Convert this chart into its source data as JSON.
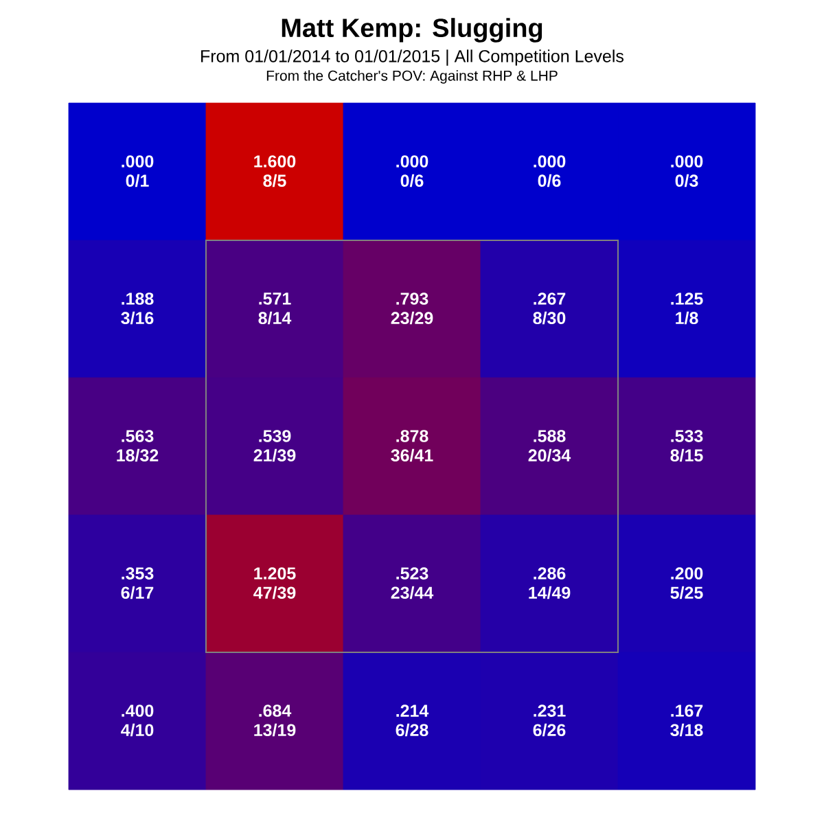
{
  "chart_data": {
    "type": "heatmap",
    "title": "Matt Kemp: Slugging",
    "subtitle": "From 01/01/2014 to 01/01/2015 | All Competition Levels",
    "annotations": [
      "From the Catcher's POV:   Against RHP & LHP",
      {
        "text": "0/1"
      },
      {
        "text": "8/5"
      },
      {
        "text": "0/6"
      },
      {
        "text": "0/6"
      },
      {
        "text": "0/3"
      },
      {
        "text": "3/16"
      },
      {
        "text": "8/14"
      },
      {
        "text": "23/29"
      },
      {
        "text": "8/30"
      },
      {
        "text": "1/8"
      },
      {
        "text": "18/32"
      },
      {
        "text": "21/39"
      },
      {
        "text": "36/41"
      },
      {
        "text": "20/34"
      },
      {
        "text": "8/15"
      },
      {
        "text": "6/17"
      },
      {
        "text": "47/39"
      },
      {
        "text": "23/44"
      },
      {
        "text": "14/49"
      },
      {
        "text": "5/25"
      },
      {
        "text": "4/10"
      },
      {
        "text": "13/19"
      },
      {
        "text": "6/28"
      },
      {
        "text": "6/26"
      },
      {
        "text": "3/18"
      }
    ],
    "categories": [
      null,
      null,
      null,
      null,
      null
    ],
    "y_categories": [
      null,
      null,
      null,
      null,
      null
    ],
    "cells": [
      [
        0.0,
        1.6,
        0.0,
        0.0,
        0.0
      ],
      [
        0.188,
        0.571,
        0.793,
        0.267,
        0.125
      ],
      [
        0.563,
        0.539,
        0.878,
        0.588,
        0.533
      ],
      [
        0.353,
        1.205,
        0.523,
        0.286,
        0.2
      ],
      [
        0.4,
        0.684,
        0.214,
        0.231,
        0.167
      ]
    ],
    "cell_labels": [
      [
        ".000",
        "1.600",
        ".000",
        ".000",
        ".000"
      ],
      [
        ".188",
        ".571",
        ".793",
        ".267",
        ".125"
      ],
      [
        ".563",
        ".539",
        ".878",
        ".588",
        ".533"
      ],
      [
        ".353",
        "1.205",
        ".523",
        ".286",
        ".200"
      ],
      [
        ".400",
        ".684",
        ".214",
        ".231",
        ".167"
      ]
    ]
  }
}
